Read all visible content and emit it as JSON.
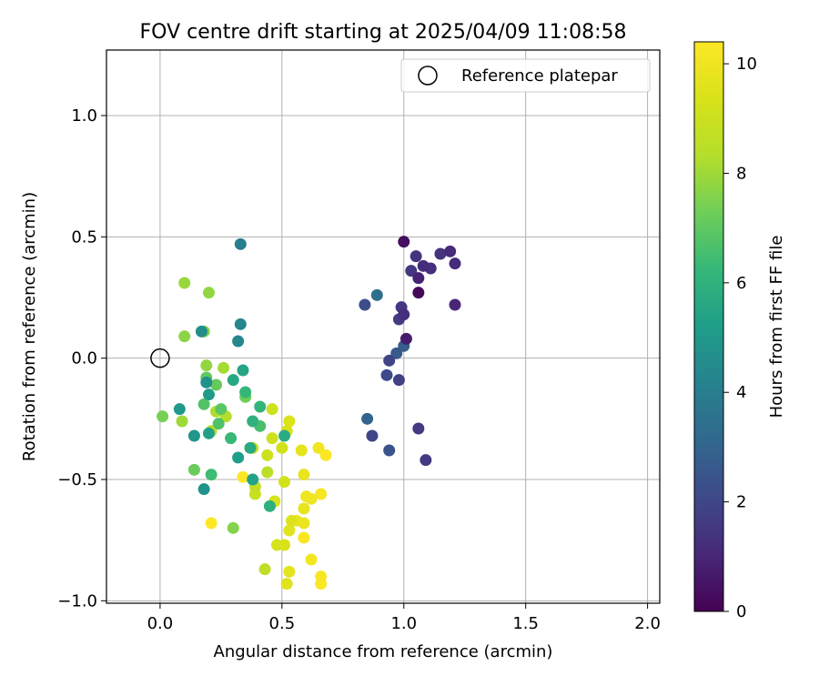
{
  "chart_data": {
    "type": "scatter",
    "title": "FOV centre drift starting at 2025/04/09 11:08:58",
    "xlabel": "Angular distance from reference (arcmin)",
    "ylabel": "Rotation from reference (arcmin)",
    "xlim": [
      -0.22,
      2.05
    ],
    "ylim": [
      -1.01,
      1.27
    ],
    "xticks": [
      0.0,
      0.5,
      1.0,
      1.5,
      2.0
    ],
    "xtick_labels": [
      "0.0",
      "0.5",
      "1.0",
      "1.5",
      "2.0"
    ],
    "yticks": [
      -1.0,
      -0.5,
      0.0,
      0.5,
      1.0
    ],
    "ytick_labels": [
      "−1.0",
      "−0.5",
      "0.0",
      "0.5",
      "1.0"
    ],
    "grid": true,
    "legend": {
      "placement": "top-right",
      "entries": [
        "Reference platepar"
      ]
    },
    "reference_point": {
      "x": 0.0,
      "y": 0.0,
      "label": "Reference platepar"
    },
    "colorbar": {
      "label": "Hours from first FF file",
      "min": 0,
      "max": 10.4,
      "ticks": [
        0,
        2,
        4,
        6,
        8,
        10
      ],
      "tick_labels": [
        "0",
        "2",
        "4",
        "6",
        "8",
        "10"
      ],
      "colormap": "viridis"
    },
    "points": [
      {
        "x": 1.06,
        "y": 0.27,
        "h": 0.2
      },
      {
        "x": 1.0,
        "y": 0.48,
        "h": 0.4
      },
      {
        "x": 1.01,
        "y": 0.08,
        "h": 0.7
      },
      {
        "x": 1.06,
        "y": 0.33,
        "h": 0.9
      },
      {
        "x": 1.21,
        "y": 0.22,
        "h": 1.0
      },
      {
        "x": 1.19,
        "y": 0.44,
        "h": 1.1
      },
      {
        "x": 1.08,
        "y": 0.38,
        "h": 1.2
      },
      {
        "x": 1.21,
        "y": 0.39,
        "h": 1.2
      },
      {
        "x": 1.11,
        "y": 0.37,
        "h": 1.3
      },
      {
        "x": 1.0,
        "y": 0.18,
        "h": 1.3
      },
      {
        "x": 1.05,
        "y": 0.42,
        "h": 1.4
      },
      {
        "x": 1.15,
        "y": 0.43,
        "h": 1.4
      },
      {
        "x": 0.99,
        "y": 0.21,
        "h": 1.5
      },
      {
        "x": 1.03,
        "y": 0.36,
        "h": 1.5
      },
      {
        "x": 1.06,
        "y": -0.29,
        "h": 1.6
      },
      {
        "x": 1.09,
        "y": -0.42,
        "h": 1.6
      },
      {
        "x": 0.98,
        "y": 0.16,
        "h": 1.7
      },
      {
        "x": 0.98,
        "y": -0.09,
        "h": 1.8
      },
      {
        "x": 0.94,
        "y": -0.01,
        "h": 1.9
      },
      {
        "x": 0.87,
        "y": -0.32,
        "h": 2.0
      },
      {
        "x": 0.93,
        "y": -0.07,
        "h": 2.1
      },
      {
        "x": 0.84,
        "y": 0.22,
        "h": 2.2
      },
      {
        "x": 0.94,
        "y": -0.38,
        "h": 2.4
      },
      {
        "x": 0.97,
        "y": 0.02,
        "h": 2.6
      },
      {
        "x": 1.0,
        "y": 0.05,
        "h": 2.8
      },
      {
        "x": 0.85,
        "y": -0.25,
        "h": 3.0
      },
      {
        "x": 0.89,
        "y": 0.26,
        "h": 3.4
      },
      {
        "x": 0.33,
        "y": 0.47,
        "h": 4.0
      },
      {
        "x": 0.33,
        "y": 0.14,
        "h": 4.3
      },
      {
        "x": 0.32,
        "y": 0.07,
        "h": 4.4
      },
      {
        "x": 0.17,
        "y": 0.11,
        "h": 4.6
      },
      {
        "x": 0.19,
        "y": -0.1,
        "h": 4.7
      },
      {
        "x": 0.18,
        "y": -0.54,
        "h": 4.8
      },
      {
        "x": 0.14,
        "y": -0.32,
        "h": 4.9
      },
      {
        "x": 0.08,
        "y": -0.21,
        "h": 5.0
      },
      {
        "x": 0.2,
        "y": -0.15,
        "h": 5.1
      },
      {
        "x": 0.32,
        "y": -0.41,
        "h": 5.2
      },
      {
        "x": 0.2,
        "y": -0.31,
        "h": 5.3
      },
      {
        "x": 0.38,
        "y": -0.5,
        "h": 5.4
      },
      {
        "x": 0.34,
        "y": -0.05,
        "h": 5.5
      },
      {
        "x": 0.3,
        "y": -0.09,
        "h": 5.6
      },
      {
        "x": 0.37,
        "y": -0.37,
        "h": 5.7
      },
      {
        "x": 0.51,
        "y": -0.32,
        "h": 5.8
      },
      {
        "x": 0.45,
        "y": -0.61,
        "h": 5.9
      },
      {
        "x": 0.38,
        "y": -0.26,
        "h": 6.0
      },
      {
        "x": 0.41,
        "y": -0.2,
        "h": 6.1
      },
      {
        "x": 0.35,
        "y": -0.14,
        "h": 6.2
      },
      {
        "x": 0.29,
        "y": -0.33,
        "h": 6.3
      },
      {
        "x": 0.21,
        "y": -0.48,
        "h": 6.4
      },
      {
        "x": 0.41,
        "y": -0.28,
        "h": 6.6
      },
      {
        "x": 0.24,
        "y": -0.27,
        "h": 6.7
      },
      {
        "x": 0.18,
        "y": -0.19,
        "h": 6.8
      },
      {
        "x": 0.25,
        "y": -0.21,
        "h": 6.9
      },
      {
        "x": 0.19,
        "y": -0.08,
        "h": 7.0
      },
      {
        "x": 0.23,
        "y": -0.11,
        "h": 7.1
      },
      {
        "x": 0.14,
        "y": -0.46,
        "h": 7.2
      },
      {
        "x": 0.35,
        "y": -0.16,
        "h": 7.3
      },
      {
        "x": 0.01,
        "y": -0.24,
        "h": 7.4
      },
      {
        "x": 0.18,
        "y": 0.11,
        "h": 7.5
      },
      {
        "x": 0.3,
        "y": -0.7,
        "h": 7.6
      },
      {
        "x": 0.1,
        "y": 0.09,
        "h": 7.7
      },
      {
        "x": 0.19,
        "y": -0.03,
        "h": 7.8
      },
      {
        "x": 0.2,
        "y": 0.27,
        "h": 7.8
      },
      {
        "x": 0.1,
        "y": 0.31,
        "h": 7.9
      },
      {
        "x": 0.09,
        "y": -0.26,
        "h": 8.0
      },
      {
        "x": 0.26,
        "y": -0.04,
        "h": 8.1
      },
      {
        "x": 0.23,
        "y": -0.22,
        "h": 8.2
      },
      {
        "x": 0.27,
        "y": -0.24,
        "h": 8.3
      },
      {
        "x": 0.21,
        "y": -0.3,
        "h": 8.4
      },
      {
        "x": 0.44,
        "y": -0.47,
        "h": 8.5
      },
      {
        "x": 0.43,
        "y": -0.87,
        "h": 8.6
      },
      {
        "x": 0.39,
        "y": -0.53,
        "h": 8.7
      },
      {
        "x": 0.38,
        "y": -0.37,
        "h": 8.8
      },
      {
        "x": 0.39,
        "y": -0.56,
        "h": 8.9
      },
      {
        "x": 0.44,
        "y": -0.4,
        "h": 9.0
      },
      {
        "x": 0.46,
        "y": -0.21,
        "h": 9.0
      },
      {
        "x": 0.46,
        "y": -0.33,
        "h": 9.1
      },
      {
        "x": 0.5,
        "y": -0.37,
        "h": 9.2
      },
      {
        "x": 0.51,
        "y": -0.51,
        "h": 9.2
      },
      {
        "x": 0.47,
        "y": -0.59,
        "h": 9.3
      },
      {
        "x": 0.48,
        "y": -0.77,
        "h": 9.3
      },
      {
        "x": 0.51,
        "y": -0.77,
        "h": 9.4
      },
      {
        "x": 0.52,
        "y": -0.3,
        "h": 9.4
      },
      {
        "x": 0.53,
        "y": -0.26,
        "h": 9.5
      },
      {
        "x": 0.54,
        "y": -0.67,
        "h": 9.5
      },
      {
        "x": 0.53,
        "y": -0.71,
        "h": 9.6
      },
      {
        "x": 0.52,
        "y": -0.93,
        "h": 9.6
      },
      {
        "x": 0.53,
        "y": -0.88,
        "h": 9.7
      },
      {
        "x": 0.58,
        "y": -0.38,
        "h": 9.7
      },
      {
        "x": 0.59,
        "y": -0.48,
        "h": 9.8
      },
      {
        "x": 0.59,
        "y": -0.62,
        "h": 9.8
      },
      {
        "x": 0.56,
        "y": -0.67,
        "h": 9.9
      },
      {
        "x": 0.59,
        "y": -0.68,
        "h": 9.9
      },
      {
        "x": 0.6,
        "y": -0.57,
        "h": 10.0
      },
      {
        "x": 0.62,
        "y": -0.58,
        "h": 10.0
      },
      {
        "x": 0.62,
        "y": -0.83,
        "h": 10.1
      },
      {
        "x": 0.65,
        "y": -0.37,
        "h": 10.1
      },
      {
        "x": 0.66,
        "y": -0.56,
        "h": 10.2
      },
      {
        "x": 0.66,
        "y": -0.9,
        "h": 10.2
      },
      {
        "x": 0.66,
        "y": -0.93,
        "h": 10.3
      },
      {
        "x": 0.59,
        "y": -0.74,
        "h": 10.3
      },
      {
        "x": 0.68,
        "y": -0.4,
        "h": 10.4
      },
      {
        "x": 0.34,
        "y": -0.49,
        "h": 10.4
      },
      {
        "x": 0.21,
        "y": -0.68,
        "h": 10.4
      }
    ]
  }
}
